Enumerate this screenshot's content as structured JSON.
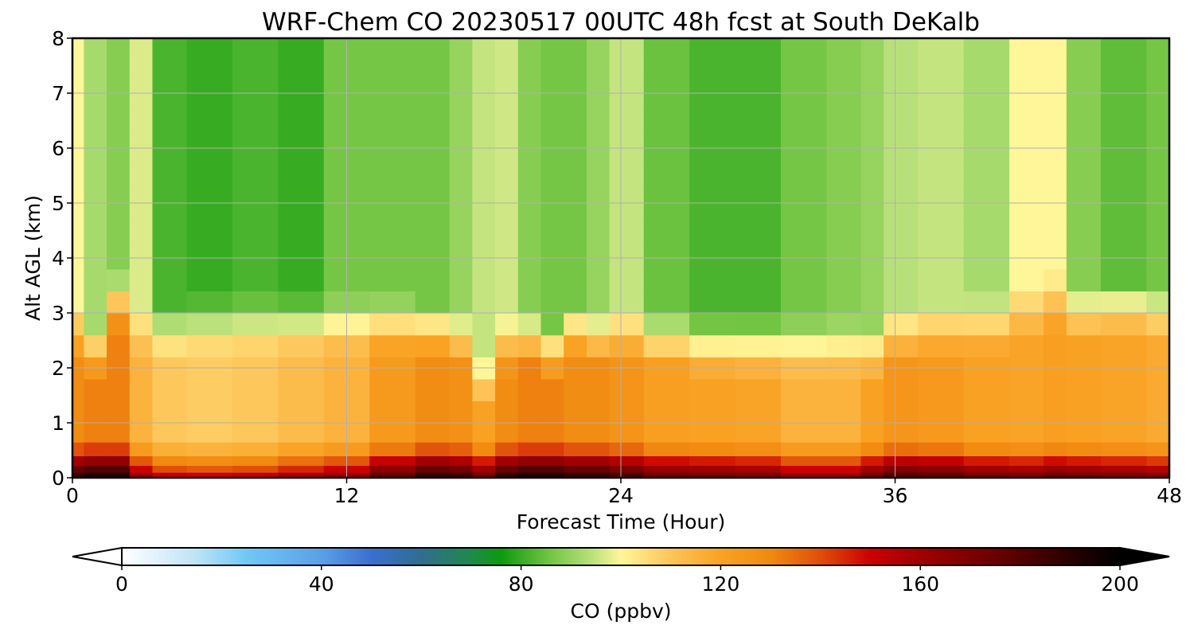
{
  "chart_data": {
    "type": "heatmap",
    "title": "WRF-Chem CO  20230517 00UTC 48h fcst at South DeKalb",
    "xlabel": "Forecast Time (Hour)",
    "ylabel": "Alt AGL (km)",
    "xlim": [
      0,
      48
    ],
    "ylim": [
      0,
      8
    ],
    "xticks": [
      "0",
      "12",
      "24",
      "36",
      "48"
    ],
    "yticks": [
      "0",
      "1",
      "2",
      "3",
      "4",
      "5",
      "6",
      "7",
      "8"
    ],
    "grid": true,
    "x": [
      0,
      1,
      2,
      3,
      4,
      6,
      8,
      10,
      12,
      14,
      16,
      17,
      18,
      19,
      20,
      21,
      22,
      23,
      24,
      26,
      28,
      30,
      32,
      34,
      35,
      36,
      38,
      40,
      42,
      43,
      44,
      46,
      48
    ],
    "y": [
      0,
      0.05,
      0.15,
      0.3,
      0.5,
      0.8,
      1.2,
      1.6,
      2.0,
      2.4,
      2.8,
      3.2,
      3.6,
      4.0,
      4.5,
      5.0,
      5.5,
      6.0,
      6.5,
      7.0,
      7.5,
      8.0
    ],
    "surface_co_by_x": [
      175,
      180,
      180,
      150,
      140,
      138,
      140,
      145,
      150,
      165,
      175,
      172,
      160,
      175,
      180,
      180,
      175,
      175,
      170,
      162,
      160,
      158,
      150,
      150,
      160,
      168,
      166,
      160,
      158,
      162,
      160,
      158,
      155
    ],
    "boundary_layer_top_km_by_x": [
      2.4,
      2.1,
      3.0,
      2.5,
      2.5,
      2.6,
      2.6,
      2.6,
      2.6,
      2.6,
      2.5,
      2.3,
      1.5,
      2.2,
      2.3,
      2.1,
      2.5,
      2.3,
      2.4,
      2.3,
      2.2,
      2.2,
      2.2,
      2.2,
      2.1,
      2.4,
      2.5,
      2.6,
      2.8,
      3.0,
      2.8,
      2.9,
      2.8
    ],
    "free_troposphere_co_by_x": [
      100,
      92,
      88,
      97,
      82,
      80,
      82,
      80,
      86,
      86,
      86,
      90,
      95,
      96,
      88,
      86,
      86,
      90,
      95,
      85,
      82,
      82,
      86,
      88,
      90,
      94,
      95,
      92,
      100,
      100,
      88,
      84,
      86
    ],
    "units": "ppbv",
    "colorbar": {
      "label": "CO  (ppbv)",
      "min": 0,
      "max": 200,
      "extend": "both",
      "ticks": [
        "0",
        "40",
        "80",
        "120",
        "160",
        "200"
      ],
      "tick_values": [
        0,
        40,
        80,
        120,
        160,
        200
      ],
      "colors": [
        [
          0,
          "#ffffff"
        ],
        [
          15,
          "#bde3f6"
        ],
        [
          25,
          "#6fc8f5"
        ],
        [
          40,
          "#5aa0e8"
        ],
        [
          50,
          "#3a6fd0"
        ],
        [
          60,
          "#2f6e8f"
        ],
        [
          70,
          "#1e8a4a"
        ],
        [
          76,
          "#0d9a0d"
        ],
        [
          86,
          "#75c644"
        ],
        [
          94,
          "#b8e07a"
        ],
        [
          100,
          "#fff69a"
        ],
        [
          110,
          "#fdc458"
        ],
        [
          120,
          "#f9a224"
        ],
        [
          130,
          "#f08a10"
        ],
        [
          140,
          "#e04e0a"
        ],
        [
          150,
          "#cc0000"
        ],
        [
          160,
          "#a00000"
        ],
        [
          175,
          "#6a0000"
        ],
        [
          190,
          "#2a0000"
        ],
        [
          200,
          "#000000"
        ]
      ]
    }
  }
}
